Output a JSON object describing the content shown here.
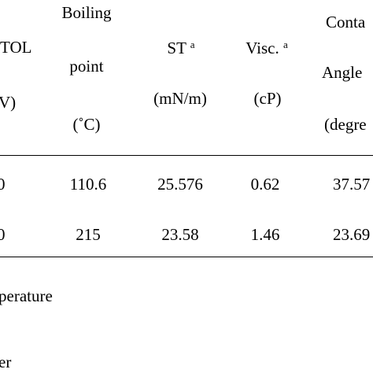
{
  "table": {
    "headers": {
      "col0": {
        "line1": "TOL",
        "line2": "V)"
      },
      "boiling": {
        "line1": "Boiling",
        "line2": "point",
        "line3": "(˚C)"
      },
      "st": {
        "label": "ST",
        "sup": "a",
        "unit": "(mN/m)"
      },
      "visc": {
        "label": "Visc.",
        "sup": "a",
        "unit": "(cP)"
      },
      "contact": {
        "line1": "Conta",
        "line2": "Angle",
        "line3": "(degre"
      }
    },
    "rows": [
      {
        "col0": "0",
        "boiling": "110.6",
        "st": "25.576",
        "visc": "0.62",
        "contact": "37.57"
      },
      {
        "col0": "0",
        "boiling": "215",
        "st": "23.58",
        "visc": "1.46",
        "contact": "23.69"
      }
    ],
    "footnotes": [
      "perature",
      "er"
    ]
  }
}
